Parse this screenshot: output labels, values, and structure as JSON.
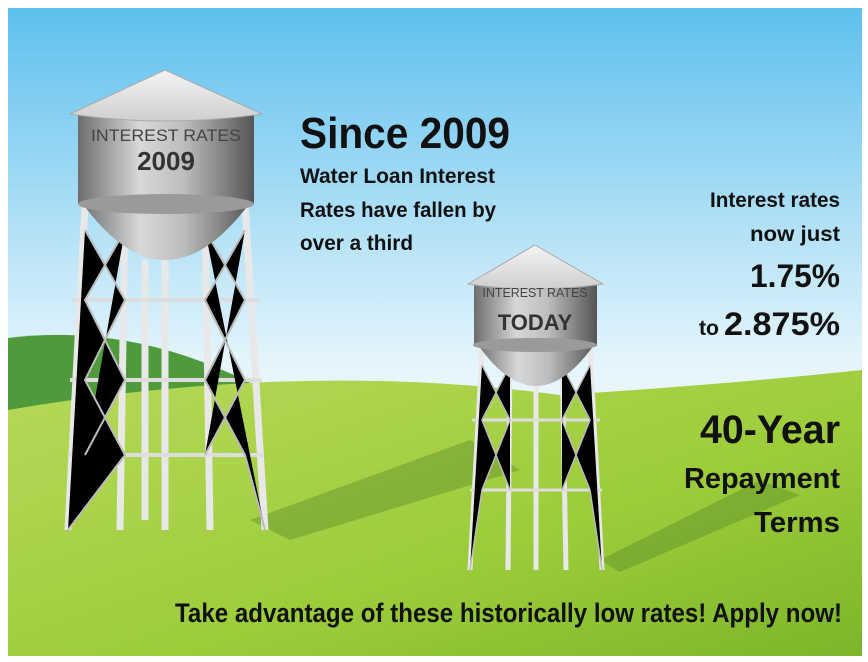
{
  "towers": [
    {
      "label": "INTEREST RATES",
      "year": "2009"
    },
    {
      "label": "INTEREST RATES",
      "year": "TODAY"
    }
  ],
  "headline": {
    "title": "Since 2009",
    "lines": [
      "Water Loan Interest",
      "Rates have fallen by",
      "over a third"
    ]
  },
  "rates": {
    "lines": [
      "Interest rates",
      "now just"
    ],
    "low": "1.75%",
    "connector": "to",
    "high": "2.875%"
  },
  "terms": {
    "lines": [
      "40-Year",
      "Repayment",
      "Terms"
    ]
  },
  "footer": "Take advantage of these historically low rates! Apply now!"
}
